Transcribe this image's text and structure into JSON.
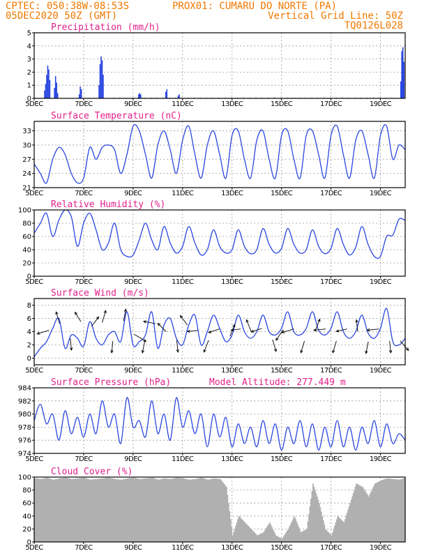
{
  "header": {
    "line1_left": "CPTEC:   050:38W-08:53S",
    "line1_right": "PROX01: CUMARU DO NORTE (PA)",
    "line2_left": "05DEC2020 50Z (GMT)",
    "line2_right": "Vertical Grid Line: 50Z",
    "line3_right": "TQ0126L028"
  },
  "colors": {
    "header": "#f07800",
    "panel_title": "#e0208a",
    "series": "#2a46e0",
    "cloud": "#b0b0b0",
    "arrow": "#000000"
  },
  "x_ticks": [
    "5DEC",
    "7DEC",
    "9DEC",
    "11DEC",
    "13DEC",
    "15DEC",
    "17DEC",
    "19DEC"
  ],
  "chart_data": [
    {
      "type": "bar",
      "title": "Precipitation (mm/h)",
      "ylim": [
        0,
        5
      ],
      "yticks": [
        0,
        1,
        2,
        3,
        4,
        5
      ],
      "grid": true,
      "x_start_day": 5,
      "x_end_day": 20,
      "step_hours": 3,
      "bursts": [
        {
          "day": 5.4,
          "heights": [
            0.6,
            1.1,
            1.8,
            2.5,
            2.2,
            1.4
          ]
        },
        {
          "day": 5.8,
          "heights": [
            0.8,
            1.7,
            1.2,
            0.4
          ]
        },
        {
          "day": 6.8,
          "heights": [
            0.3,
            0.9,
            0.7
          ]
        },
        {
          "day": 7.6,
          "heights": [
            1.0,
            2.6,
            3.2,
            2.9,
            1.8
          ]
        },
        {
          "day": 9.2,
          "heights": [
            0.3,
            0.4,
            0.3
          ]
        },
        {
          "day": 10.3,
          "heights": [
            0.5,
            0.7
          ]
        },
        {
          "day": 10.8,
          "heights": [
            0.2,
            0.3
          ]
        },
        {
          "day": 19.8,
          "heights": [
            1.3,
            3.6,
            3.9,
            2.8
          ]
        }
      ]
    },
    {
      "type": "line",
      "title": "Surface Temperature (nC)",
      "ylim": [
        21,
        35
      ],
      "yticks": [
        21,
        24,
        27,
        30,
        33
      ],
      "grid": true,
      "x": [
        5,
        5.25,
        5.5,
        5.75,
        6,
        6.25,
        6.5,
        6.75,
        7,
        7.25,
        7.5,
        7.75,
        8,
        8.25,
        8.5,
        8.75,
        9,
        9.25,
        9.5,
        9.75,
        10,
        10.25,
        10.5,
        10.75,
        11,
        11.25,
        11.5,
        11.75,
        12,
        12.25,
        12.5,
        12.75,
        13,
        13.25,
        13.5,
        13.75,
        14,
        14.25,
        14.5,
        14.75,
        15,
        15.25,
        15.5,
        15.75,
        16,
        16.25,
        16.5,
        16.75,
        17,
        17.25,
        17.5,
        17.75,
        18,
        18.25,
        18.5,
        18.75,
        19,
        19.25,
        19.5,
        19.75,
        20
      ],
      "values": [
        26,
        24,
        22,
        27,
        29.5,
        28,
        24,
        22,
        23,
        29.5,
        27,
        29.5,
        30,
        29,
        24,
        28,
        34,
        33,
        28,
        23,
        30,
        33,
        29,
        24,
        31,
        34,
        28,
        23,
        30,
        33,
        28,
        23,
        32,
        33,
        27,
        23,
        31,
        33,
        27,
        23,
        32,
        33,
        27,
        23,
        32,
        33,
        28,
        23,
        32,
        34,
        28,
        23,
        31,
        33,
        28,
        23,
        32,
        34,
        27,
        30,
        29
      ]
    },
    {
      "type": "line",
      "title": "Relative Humidity (%)",
      "ylim": [
        0,
        100
      ],
      "yticks": [
        0,
        20,
        40,
        60,
        80,
        100
      ],
      "grid": true,
      "x": [
        5,
        5.25,
        5.5,
        5.75,
        6,
        6.25,
        6.5,
        6.75,
        7,
        7.25,
        7.5,
        7.75,
        8,
        8.25,
        8.5,
        8.75,
        9,
        9.25,
        9.5,
        9.75,
        10,
        10.25,
        10.5,
        10.75,
        11,
        11.25,
        11.5,
        11.75,
        12,
        12.25,
        12.5,
        12.75,
        13,
        13.25,
        13.5,
        13.75,
        14,
        14.25,
        14.5,
        14.75,
        15,
        15.25,
        15.5,
        15.75,
        16,
        16.25,
        16.5,
        16.75,
        17,
        17.25,
        17.5,
        17.75,
        18,
        18.25,
        18.5,
        18.75,
        19,
        19.25,
        19.5,
        19.75,
        20
      ],
      "values": [
        65,
        80,
        95,
        60,
        85,
        100,
        90,
        45,
        80,
        95,
        70,
        40,
        50,
        80,
        40,
        30,
        32,
        55,
        80,
        55,
        40,
        75,
        50,
        35,
        45,
        75,
        50,
        32,
        40,
        70,
        45,
        35,
        40,
        70,
        45,
        34,
        40,
        72,
        48,
        35,
        42,
        72,
        48,
        35,
        40,
        70,
        45,
        34,
        42,
        72,
        48,
        32,
        44,
        75,
        48,
        30,
        30,
        60,
        62,
        86,
        84
      ]
    },
    {
      "type": "line",
      "title": "Surface Wind (m/s)",
      "ylim": [
        -1,
        9
      ],
      "yticks": [
        0,
        2,
        4,
        6,
        8
      ],
      "grid": true,
      "x": [
        5,
        5.25,
        5.5,
        5.75,
        6,
        6.25,
        6.5,
        6.75,
        7,
        7.25,
        7.5,
        7.75,
        8,
        8.25,
        8.5,
        8.75,
        9,
        9.25,
        9.5,
        9.75,
        10,
        10.25,
        10.5,
        10.75,
        11,
        11.25,
        11.5,
        11.75,
        12,
        12.25,
        12.5,
        12.75,
        13,
        13.25,
        13.5,
        13.75,
        14,
        14.25,
        14.5,
        14.75,
        15,
        15.25,
        15.5,
        15.75,
        16,
        16.25,
        16.5,
        16.75,
        17,
        17.25,
        17.5,
        17.75,
        18,
        18.25,
        18.5,
        18.75,
        19,
        19.25,
        19.5,
        19.75,
        20
      ],
      "values": [
        0.2,
        1.5,
        2.5,
        4.5,
        6,
        1.5,
        3.5,
        3,
        1.8,
        5.5,
        3,
        2,
        3.5,
        4,
        2.5,
        7,
        2,
        2.5,
        3.5,
        7,
        1.5,
        5,
        6,
        3,
        2,
        5,
        6.5,
        2,
        4,
        6.5,
        4.5,
        2.5,
        3.5,
        6.5,
        4,
        3,
        4,
        6.5,
        4,
        3.5,
        4.5,
        7,
        4,
        3.5,
        4.5,
        7,
        4.2,
        3.5,
        4.5,
        7,
        4,
        3,
        4,
        6.5,
        3.8,
        3,
        4.5,
        7.5,
        2.5,
        2,
        3
      ]
    },
    {
      "type": "line",
      "title": "Surface Pressure (hPa)",
      "annotation": "Model Altitude: 277.449 m",
      "ylim": [
        974,
        984
      ],
      "yticks": [
        974,
        976,
        978,
        980,
        982,
        984
      ],
      "grid": true,
      "x": [
        5,
        5.25,
        5.5,
        5.75,
        6,
        6.25,
        6.5,
        6.75,
        7,
        7.25,
        7.5,
        7.75,
        8,
        8.25,
        8.5,
        8.75,
        9,
        9.25,
        9.5,
        9.75,
        10,
        10.25,
        10.5,
        10.75,
        11,
        11.25,
        11.5,
        11.75,
        12,
        12.25,
        12.5,
        12.75,
        13,
        13.25,
        13.5,
        13.75,
        14,
        14.25,
        14.5,
        14.75,
        15,
        15.25,
        15.5,
        15.75,
        16,
        16.25,
        16.5,
        16.75,
        17,
        17.25,
        17.5,
        17.75,
        18,
        18.25,
        18.5,
        18.75,
        19,
        19.25,
        19.5,
        19.75,
        20
      ],
      "values": [
        979,
        981.5,
        978.5,
        980,
        976,
        980.5,
        977,
        979.5,
        976.5,
        980,
        977,
        982,
        978,
        980,
        975.5,
        982.5,
        978,
        979,
        976.5,
        982,
        977,
        980,
        976,
        982.5,
        978,
        980.5,
        977,
        980,
        975,
        980,
        976.5,
        979.5,
        975,
        978.5,
        975.5,
        978,
        975,
        979,
        975.5,
        978.5,
        974.5,
        978,
        975.5,
        979,
        975,
        978.5,
        974.5,
        978,
        975,
        979,
        975,
        978,
        974.5,
        978,
        975.5,
        979,
        975,
        978.5,
        975.5,
        977,
        976
      ]
    },
    {
      "type": "area",
      "title": "Cloud Cover (%)",
      "ylim": [
        0,
        100
      ],
      "yticks": [
        0,
        20,
        40,
        60,
        80,
        100
      ],
      "grid": true,
      "x": [
        5,
        5.25,
        5.5,
        5.75,
        6,
        6.25,
        6.5,
        6.75,
        7,
        7.25,
        7.5,
        7.75,
        8,
        8.25,
        8.5,
        8.75,
        9,
        9.25,
        9.5,
        9.75,
        10,
        10.25,
        10.5,
        10.75,
        11,
        11.25,
        11.5,
        11.75,
        12,
        12.25,
        12.5,
        12.75,
        13,
        13.25,
        13.5,
        13.75,
        14,
        14.25,
        14.5,
        14.75,
        15,
        15.25,
        15.5,
        15.75,
        16,
        16.25,
        16.5,
        16.75,
        17,
        17.25,
        17.5,
        17.75,
        18,
        18.25,
        18.5,
        18.75,
        19,
        19.25,
        19.5,
        19.75,
        20
      ],
      "values": [
        98,
        97,
        99,
        96,
        98,
        99,
        97,
        98,
        99,
        96,
        97,
        98,
        99,
        97,
        96,
        98,
        99,
        97,
        98,
        99,
        96,
        98,
        97,
        99,
        98,
        96,
        97,
        99,
        96,
        98,
        97,
        85,
        10,
        40,
        30,
        20,
        10,
        15,
        30,
        10,
        5,
        20,
        40,
        15,
        20,
        90,
        60,
        20,
        10,
        40,
        30,
        60,
        90,
        85,
        70,
        90,
        95,
        98,
        97,
        96,
        99
      ]
    }
  ]
}
